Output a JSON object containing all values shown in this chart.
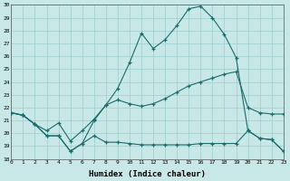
{
  "xlabel": "Humidex (Indice chaleur)",
  "bg_color": "#c8e8e8",
  "line_color": "#1a6b6b",
  "grid_color": "#9ecece",
  "x_min": 0,
  "x_max": 23,
  "y_min": 18,
  "y_max": 30,
  "series1_x": [
    0,
    1,
    2,
    3,
    4,
    5,
    6,
    7,
    8,
    9,
    10,
    11,
    12,
    13,
    14,
    15,
    16,
    17,
    18,
    19,
    20,
    21,
    22,
    23
  ],
  "series1_y": [
    21.6,
    21.4,
    20.7,
    19.8,
    19.8,
    18.6,
    19.2,
    21.0,
    22.2,
    23.5,
    25.5,
    27.8,
    26.6,
    27.3,
    28.4,
    29.7,
    29.9,
    29.0,
    27.7,
    25.9,
    20.2,
    19.6,
    19.5,
    18.6
  ],
  "series2_x": [
    0,
    1,
    2,
    3,
    4,
    5,
    6,
    7,
    8,
    9,
    10,
    11,
    12,
    13,
    14,
    15,
    16,
    17,
    18,
    19,
    20,
    21,
    22,
    23
  ],
  "series2_y": [
    21.6,
    21.4,
    20.7,
    20.2,
    20.8,
    19.4,
    20.2,
    21.1,
    22.2,
    22.6,
    22.3,
    22.1,
    22.3,
    22.7,
    23.2,
    23.7,
    24.0,
    24.3,
    24.6,
    24.8,
    22.0,
    21.6,
    21.5,
    21.5
  ],
  "series3_x": [
    0,
    1,
    2,
    3,
    4,
    5,
    6,
    7,
    8,
    9,
    10,
    11,
    12,
    13,
    14,
    15,
    16,
    17,
    18,
    19,
    20,
    21,
    22,
    23
  ],
  "series3_y": [
    21.6,
    21.4,
    20.7,
    19.8,
    19.8,
    18.6,
    19.2,
    19.8,
    19.3,
    19.3,
    19.2,
    19.1,
    19.1,
    19.1,
    19.1,
    19.1,
    19.2,
    19.2,
    19.2,
    19.2,
    20.2,
    19.6,
    19.5,
    18.6
  ]
}
